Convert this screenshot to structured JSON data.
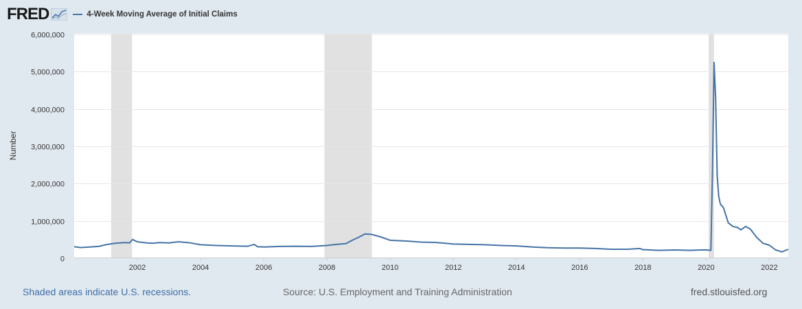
{
  "header": {
    "logo_text": "FRED",
    "logo_icon": "chart-line-icon",
    "legend_label": "4-Week Moving Average of Initial Claims",
    "legend_color": "#4572a7"
  },
  "footer": {
    "recession_note": "Shaded areas indicate U.S. recessions.",
    "source": "Source: U.S. Employment and Training Administration",
    "site": "fred.stlouisfed.org"
  },
  "chart_data": {
    "type": "line",
    "title": "",
    "xlabel": "",
    "ylabel": "Number",
    "xlim": [
      2000.0,
      2022.6
    ],
    "ylim": [
      0,
      6000000
    ],
    "y_ticks": [
      0,
      1000000,
      2000000,
      3000000,
      4000000,
      5000000,
      6000000
    ],
    "y_tick_labels": [
      "0",
      "1,000,000",
      "2,000,000",
      "3,000,000",
      "4,000,000",
      "5,000,000",
      "6,000,000"
    ],
    "x_ticks": [
      2002,
      2004,
      2006,
      2008,
      2010,
      2012,
      2014,
      2016,
      2018,
      2020,
      2022
    ],
    "x_tick_labels": [
      "2002",
      "2004",
      "2006",
      "2008",
      "2010",
      "2012",
      "2014",
      "2016",
      "2018",
      "2020",
      "2022"
    ],
    "grid": true,
    "legend": "top-left",
    "line_color": "#4572a7",
    "recessions": [
      [
        2001.17,
        2001.83
      ],
      [
        2007.92,
        2009.42
      ],
      [
        2020.08,
        2020.25
      ]
    ],
    "series": [
      {
        "name": "4-Week Moving Average of Initial Claims",
        "x": [
          2000.0,
          2000.2,
          2000.5,
          2000.8,
          2001.0,
          2001.3,
          2001.6,
          2001.75,
          2001.85,
          2002.0,
          2002.3,
          2002.5,
          2002.7,
          2003.0,
          2003.3,
          2003.6,
          2004.0,
          2004.5,
          2005.0,
          2005.5,
          2005.7,
          2005.8,
          2006.0,
          2006.5,
          2007.0,
          2007.5,
          2008.0,
          2008.3,
          2008.6,
          2008.8,
          2009.0,
          2009.2,
          2009.4,
          2009.7,
          2010.0,
          2010.5,
          2011.0,
          2011.5,
          2012.0,
          2012.5,
          2013.0,
          2013.5,
          2014.0,
          2014.5,
          2015.0,
          2015.5,
          2016.0,
          2016.5,
          2017.0,
          2017.5,
          2017.9,
          2018.0,
          2018.5,
          2019.0,
          2019.5,
          2019.8,
          2020.0,
          2020.15,
          2020.2,
          2020.25,
          2020.3,
          2020.35,
          2020.4,
          2020.45,
          2020.55,
          2020.7,
          2020.85,
          2021.0,
          2021.1,
          2021.25,
          2021.4,
          2021.6,
          2021.8,
          2022.0,
          2022.2,
          2022.4,
          2022.6
        ],
        "values": [
          310000,
          285000,
          300000,
          320000,
          360000,
          400000,
          420000,
          410000,
          500000,
          440000,
          410000,
          400000,
          420000,
          410000,
          440000,
          420000,
          360000,
          340000,
          330000,
          320000,
          370000,
          310000,
          300000,
          315000,
          320000,
          315000,
          340000,
          370000,
          390000,
          480000,
          560000,
          650000,
          640000,
          570000,
          480000,
          460000,
          430000,
          420000,
          380000,
          370000,
          360000,
          340000,
          330000,
          300000,
          280000,
          270000,
          270000,
          260000,
          240000,
          240000,
          260000,
          230000,
          210000,
          220000,
          210000,
          220000,
          220000,
          210000,
          2300000,
          5250000,
          4300000,
          2200000,
          1650000,
          1450000,
          1350000,
          950000,
          850000,
          820000,
          760000,
          850000,
          780000,
          560000,
          400000,
          350000,
          220000,
          170000,
          240000
        ]
      }
    ]
  }
}
